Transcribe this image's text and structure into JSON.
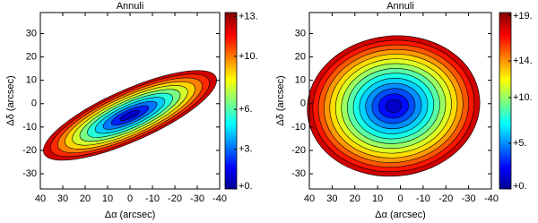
{
  "chart_data": [
    {
      "type": "heatmap",
      "title": "Annuli",
      "xlabel": "Δα (arcsec)",
      "ylabel": "Δδ (arcsec)",
      "xlim": [
        40,
        -40
      ],
      "xticks": [
        40,
        30,
        20,
        10,
        0,
        -10,
        -20,
        -30,
        -40
      ],
      "ylim": [
        -36.5,
        39
      ],
      "yticks": [
        30,
        20,
        10,
        0,
        -10,
        -20,
        -30
      ],
      "clim": [
        0,
        13.3
      ],
      "cticks": [
        {
          "value": 13,
          "label": "+13."
        },
        {
          "value": 10,
          "label": "+10."
        },
        {
          "value": 6,
          "label": "+6."
        },
        {
          "value": 3,
          "label": "+3."
        },
        {
          "value": 0,
          "label": "+0."
        }
      ]
    },
    {
      "type": "heatmap",
      "title": "Annuli",
      "xlabel": "Δα (arcsec)",
      "ylabel": "Δδ (arcsec)",
      "xlim": [
        40,
        -40
      ],
      "xticks": [
        40,
        30,
        20,
        10,
        0,
        -10,
        -20,
        -30,
        -40
      ],
      "ylim": [
        -36.5,
        39
      ],
      "yticks": [
        30,
        20,
        10,
        0,
        -10,
        -20,
        -30
      ],
      "clim": [
        0,
        19.3
      ],
      "cticks": [
        {
          "value": 19,
          "label": "+19."
        },
        {
          "value": 14,
          "label": "+14."
        },
        {
          "value": 10,
          "label": "+10."
        },
        {
          "value": 5,
          "label": "+5."
        },
        {
          "value": 0,
          "label": "+0."
        }
      ]
    }
  ]
}
